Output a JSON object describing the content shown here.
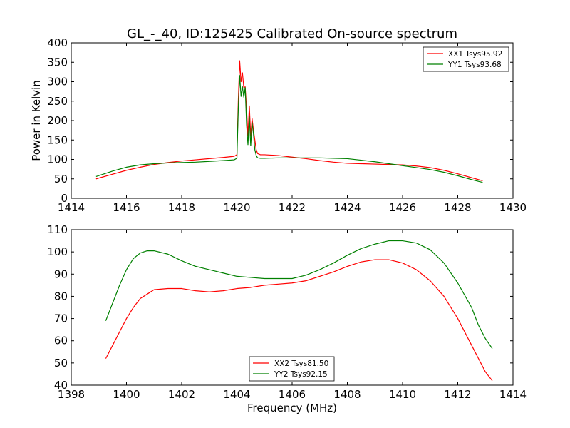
{
  "title": "GL_-_40, ID:125425 Calibrated On-source spectrum",
  "chart_data": [
    {
      "type": "line",
      "title": "GL_-_40, ID:125425 Calibrated On-source spectrum",
      "xlabel": "",
      "ylabel": "Power in Kelvin",
      "xlim": [
        1414,
        1430
      ],
      "ylim": [
        0,
        400
      ],
      "xticks": [
        "1414",
        "1416",
        "1418",
        "1420",
        "1422",
        "1424",
        "1426",
        "1428",
        "1430"
      ],
      "yticks": [
        "0",
        "50",
        "100",
        "150",
        "200",
        "250",
        "300",
        "350",
        "400"
      ],
      "legend_position": "top-right",
      "series": [
        {
          "name": "XX1 Tsys95.92",
          "color": "#ff0000",
          "x": [
            1414.9,
            1415.5,
            1416.0,
            1416.5,
            1417.0,
            1417.5,
            1418.0,
            1418.5,
            1419.0,
            1419.5,
            1419.9,
            1420.0,
            1420.05,
            1420.1,
            1420.15,
            1420.2,
            1420.25,
            1420.3,
            1420.35,
            1420.4,
            1420.45,
            1420.5,
            1420.55,
            1420.6,
            1420.65,
            1420.7,
            1420.75,
            1420.85,
            1421.0,
            1421.5,
            1422.0,
            1422.5,
            1423.0,
            1423.5,
            1424.0,
            1424.5,
            1425.0,
            1425.5,
            1426.0,
            1426.5,
            1427.0,
            1427.5,
            1428.0,
            1428.5,
            1428.9
          ],
          "y": [
            50,
            62,
            72,
            80,
            87,
            92,
            96,
            99,
            102,
            105,
            108,
            112,
            250,
            354,
            300,
            323,
            285,
            287,
            230,
            160,
            238,
            160,
            205,
            175,
            150,
            125,
            115,
            112,
            112,
            110,
            106,
            102,
            97,
            93,
            90,
            89,
            88,
            87,
            86,
            83,
            79,
            72,
            63,
            53,
            45
          ]
        },
        {
          "name": "YY1 Tsys93.68",
          "color": "#008000",
          "x": [
            1414.9,
            1415.5,
            1416.0,
            1416.5,
            1417.0,
            1417.5,
            1418.0,
            1418.5,
            1419.0,
            1419.5,
            1419.9,
            1420.0,
            1420.05,
            1420.1,
            1420.15,
            1420.2,
            1420.25,
            1420.3,
            1420.35,
            1420.4,
            1420.45,
            1420.5,
            1420.55,
            1420.6,
            1420.65,
            1420.7,
            1420.75,
            1420.85,
            1421.0,
            1421.5,
            1422.0,
            1422.5,
            1423.0,
            1423.5,
            1424.0,
            1424.5,
            1425.0,
            1425.5,
            1426.0,
            1426.5,
            1427.0,
            1427.5,
            1428.0,
            1428.5,
            1428.9
          ],
          "y": [
            56,
            70,
            80,
            86,
            89,
            91,
            92,
            93,
            95,
            97,
            99,
            103,
            230,
            316,
            262,
            287,
            260,
            285,
            190,
            138,
            210,
            135,
            195,
            165,
            125,
            110,
            104,
            103,
            103,
            104,
            104,
            104,
            104,
            103,
            102,
            98,
            94,
            89,
            84,
            79,
            74,
            67,
            58,
            48,
            41
          ]
        }
      ]
    },
    {
      "type": "line",
      "title": "",
      "xlabel": "Frequency (MHz)",
      "ylabel": "",
      "xlim": [
        1398,
        1414
      ],
      "ylim": [
        40,
        110
      ],
      "xticks": [
        "1398",
        "1400",
        "1402",
        "1404",
        "1406",
        "1408",
        "1410",
        "1412",
        "1414"
      ],
      "yticks": [
        "40",
        "50",
        "60",
        "70",
        "80",
        "90",
        "100",
        "110"
      ],
      "legend_position": "bottom-center",
      "series": [
        {
          "name": "XX2 Tsys81.50",
          "color": "#ff0000",
          "x": [
            1399.25,
            1399.5,
            1399.75,
            1400.0,
            1400.25,
            1400.5,
            1400.75,
            1401.0,
            1401.5,
            1402.0,
            1402.5,
            1403.0,
            1403.5,
            1404.0,
            1404.5,
            1405.0,
            1405.5,
            1406.0,
            1406.5,
            1407.0,
            1407.5,
            1408.0,
            1408.5,
            1409.0,
            1409.5,
            1410.0,
            1410.5,
            1411.0,
            1411.5,
            1412.0,
            1412.5,
            1412.75,
            1413.0,
            1413.25
          ],
          "y": [
            52,
            58,
            64,
            70,
            75,
            79,
            81,
            83,
            83.5,
            83.5,
            82.5,
            82,
            82.5,
            83.5,
            84,
            85,
            85.5,
            86,
            87,
            89,
            91,
            93.5,
            95.5,
            96.5,
            96.5,
            95,
            92,
            87,
            80,
            70,
            58,
            52,
            46,
            42
          ]
        },
        {
          "name": "YY2 Tsys92.15",
          "color": "#008000",
          "x": [
            1399.25,
            1399.5,
            1399.75,
            1400.0,
            1400.25,
            1400.5,
            1400.75,
            1401.0,
            1401.5,
            1402.0,
            1402.5,
            1403.0,
            1403.5,
            1404.0,
            1404.5,
            1405.0,
            1405.5,
            1406.0,
            1406.5,
            1407.0,
            1407.5,
            1408.0,
            1408.5,
            1409.0,
            1409.5,
            1410.0,
            1410.5,
            1411.0,
            1411.5,
            1412.0,
            1412.5,
            1412.75,
            1413.0,
            1413.25
          ],
          "y": [
            69,
            77,
            85,
            92,
            97,
            99.5,
            100.5,
            100.5,
            99,
            96,
            93.5,
            92,
            90.5,
            89,
            88.5,
            88,
            88,
            88,
            89.5,
            92,
            95,
            98.5,
            101.5,
            103.5,
            105,
            105,
            104,
            101,
            95,
            86,
            75,
            67,
            61,
            56.5
          ]
        }
      ]
    }
  ]
}
